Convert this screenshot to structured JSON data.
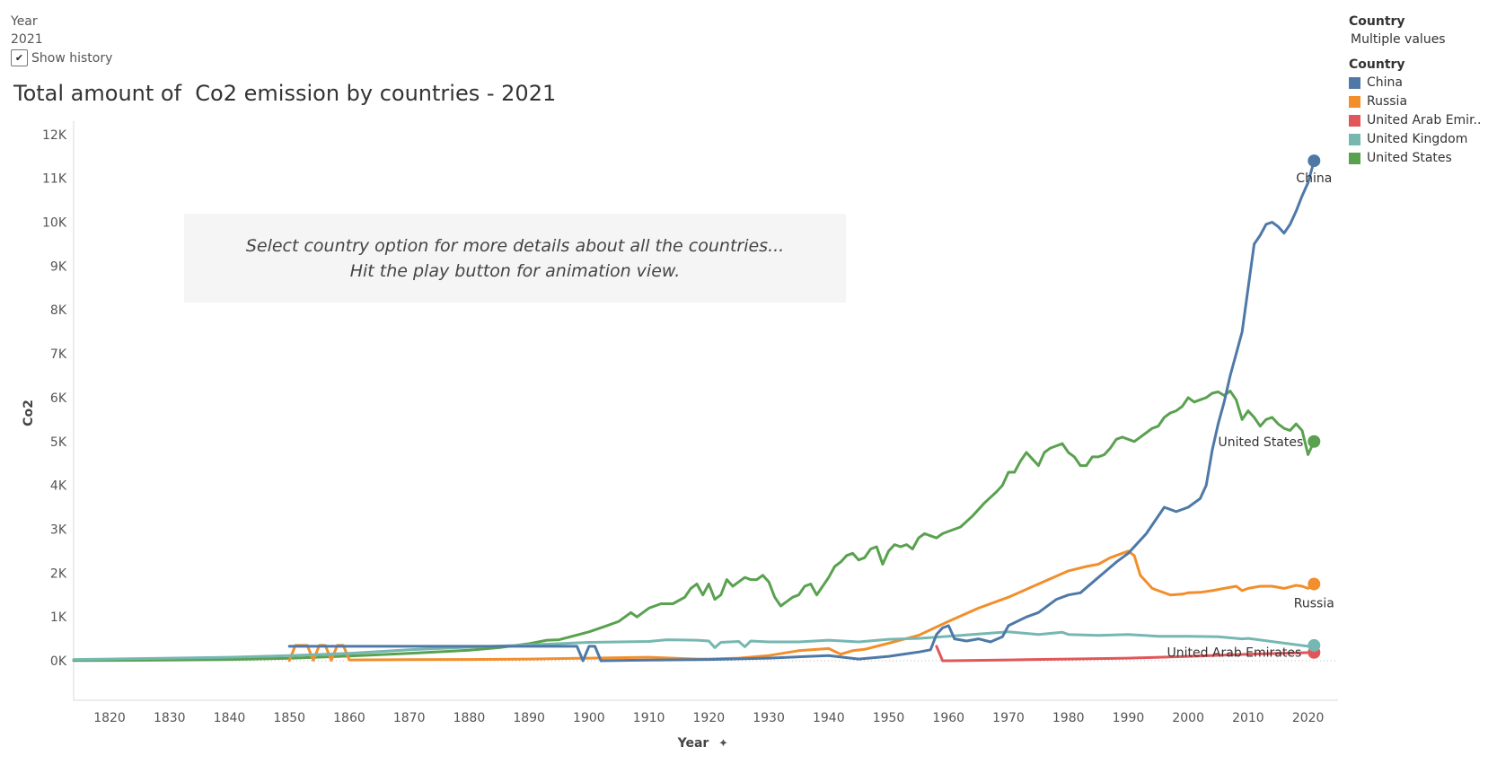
{
  "filters": {
    "year_label": "Year",
    "year_value": "2021",
    "show_history_label": "Show history",
    "show_history_checked": true,
    "country_header": "Country",
    "country_value": "Multiple values"
  },
  "legend": {
    "title": "Country",
    "items": [
      {
        "label": "China",
        "color": "#4e79a7"
      },
      {
        "label": "Russia",
        "color": "#f28e2b"
      },
      {
        "label": "United Arab Emir..",
        "color": "#e15759"
      },
      {
        "label": "United Kingdom",
        "color": "#76b7b2"
      },
      {
        "label": "United States",
        "color": "#59a14f"
      }
    ]
  },
  "note": {
    "line1": "Select country option for more details about all the countries...",
    "line2": "Hit the play button for animation view."
  },
  "chart_data": {
    "type": "line",
    "title": "Total amount of  Co2 emission by countries - 2021",
    "xlabel": "Year",
    "ylabel": "Co2",
    "xlim": [
      1814,
      2025
    ],
    "ylim": [
      -900,
      12200
    ],
    "x_ticks": [
      1820,
      1830,
      1840,
      1850,
      1860,
      1870,
      1880,
      1890,
      1900,
      1910,
      1920,
      1930,
      1940,
      1950,
      1960,
      1970,
      1980,
      1990,
      2000,
      2010,
      2020
    ],
    "x_tick_labels": [
      "1820",
      "1830",
      "1840",
      "1850",
      "1860",
      "1870",
      "1880",
      "1890",
      "1900",
      "1910",
      "1920",
      "1930",
      "1940",
      "1950",
      "1960",
      "1970",
      "1980",
      "1990",
      "2000",
      "2010",
      "2020"
    ],
    "y_ticks": [
      0,
      1000,
      2000,
      3000,
      4000,
      5000,
      6000,
      7000,
      8000,
      9000,
      10000,
      11000,
      12000
    ],
    "y_tick_labels": [
      "0K",
      "1K",
      "2K",
      "3K",
      "4K",
      "5K",
      "6K",
      "7K",
      "8K",
      "9K",
      "10K",
      "11K",
      "12K"
    ],
    "series": [
      {
        "name": "United States",
        "color": "#59a14f",
        "end_label": "United States",
        "points": [
          [
            1814,
            5
          ],
          [
            1820,
            8
          ],
          [
            1830,
            15
          ],
          [
            1840,
            30
          ],
          [
            1850,
            55
          ],
          [
            1860,
            110
          ],
          [
            1870,
            170
          ],
          [
            1880,
            240
          ],
          [
            1885,
            300
          ],
          [
            1890,
            390
          ],
          [
            1893,
            470
          ],
          [
            1895,
            480
          ],
          [
            1900,
            660
          ],
          [
            1903,
            800
          ],
          [
            1905,
            900
          ],
          [
            1907,
            1100
          ],
          [
            1908,
            1000
          ],
          [
            1910,
            1200
          ],
          [
            1912,
            1300
          ],
          [
            1914,
            1300
          ],
          [
            1916,
            1450
          ],
          [
            1917,
            1650
          ],
          [
            1918,
            1750
          ],
          [
            1919,
            1500
          ],
          [
            1920,
            1750
          ],
          [
            1921,
            1400
          ],
          [
            1922,
            1500
          ],
          [
            1923,
            1850
          ],
          [
            1924,
            1700
          ],
          [
            1925,
            1800
          ],
          [
            1926,
            1900
          ],
          [
            1927,
            1850
          ],
          [
            1928,
            1850
          ],
          [
            1929,
            1950
          ],
          [
            1930,
            1800
          ],
          [
            1931,
            1450
          ],
          [
            1932,
            1250
          ],
          [
            1933,
            1350
          ],
          [
            1934,
            1450
          ],
          [
            1935,
            1500
          ],
          [
            1936,
            1700
          ],
          [
            1937,
            1750
          ],
          [
            1938,
            1500
          ],
          [
            1939,
            1700
          ],
          [
            1940,
            1900
          ],
          [
            1941,
            2150
          ],
          [
            1942,
            2250
          ],
          [
            1943,
            2400
          ],
          [
            1944,
            2450
          ],
          [
            1945,
            2300
          ],
          [
            1946,
            2350
          ],
          [
            1947,
            2550
          ],
          [
            1948,
            2600
          ],
          [
            1949,
            2200
          ],
          [
            1950,
            2500
          ],
          [
            1951,
            2650
          ],
          [
            1952,
            2600
          ],
          [
            1953,
            2650
          ],
          [
            1954,
            2550
          ],
          [
            1955,
            2800
          ],
          [
            1956,
            2900
          ],
          [
            1957,
            2850
          ],
          [
            1958,
            2800
          ],
          [
            1959,
            2900
          ],
          [
            1960,
            2950
          ],
          [
            1962,
            3050
          ],
          [
            1964,
            3300
          ],
          [
            1966,
            3600
          ],
          [
            1968,
            3850
          ],
          [
            1969,
            4000
          ],
          [
            1970,
            4300
          ],
          [
            1971,
            4300
          ],
          [
            1972,
            4550
          ],
          [
            1973,
            4750
          ],
          [
            1974,
            4600
          ],
          [
            1975,
            4450
          ],
          [
            1976,
            4750
          ],
          [
            1977,
            4850
          ],
          [
            1978,
            4900
          ],
          [
            1979,
            4950
          ],
          [
            1980,
            4750
          ],
          [
            1981,
            4650
          ],
          [
            1982,
            4450
          ],
          [
            1983,
            4450
          ],
          [
            1984,
            4650
          ],
          [
            1985,
            4650
          ],
          [
            1986,
            4700
          ],
          [
            1987,
            4850
          ],
          [
            1988,
            5050
          ],
          [
            1989,
            5100
          ],
          [
            1990,
            5050
          ],
          [
            1991,
            5000
          ],
          [
            1992,
            5100
          ],
          [
            1993,
            5200
          ],
          [
            1994,
            5300
          ],
          [
            1995,
            5350
          ],
          [
            1996,
            5550
          ],
          [
            1997,
            5650
          ],
          [
            1998,
            5700
          ],
          [
            1999,
            5800
          ],
          [
            2000,
            6000
          ],
          [
            2001,
            5900
          ],
          [
            2002,
            5950
          ],
          [
            2003,
            6000
          ],
          [
            2004,
            6100
          ],
          [
            2005,
            6130
          ],
          [
            2006,
            6050
          ],
          [
            2007,
            6150
          ],
          [
            2008,
            5950
          ],
          [
            2009,
            5500
          ],
          [
            2010,
            5700
          ],
          [
            2011,
            5550
          ],
          [
            2012,
            5350
          ],
          [
            2013,
            5500
          ],
          [
            2014,
            5550
          ],
          [
            2015,
            5400
          ],
          [
            2016,
            5300
          ],
          [
            2017,
            5250
          ],
          [
            2018,
            5400
          ],
          [
            2019,
            5250
          ],
          [
            2020,
            4700
          ],
          [
            2021,
            5000
          ]
        ]
      },
      {
        "name": "Russia",
        "color": "#f28e2b",
        "end_label": "Russia",
        "points": [
          [
            1850,
            5
          ],
          [
            1851,
            350
          ],
          [
            1853,
            350
          ],
          [
            1854,
            10
          ],
          [
            1855,
            350
          ],
          [
            1856,
            350
          ],
          [
            1857,
            10
          ],
          [
            1858,
            350
          ],
          [
            1859,
            350
          ],
          [
            1860,
            20
          ],
          [
            1870,
            25
          ],
          [
            1880,
            30
          ],
          [
            1890,
            40
          ],
          [
            1900,
            60
          ],
          [
            1910,
            80
          ],
          [
            1918,
            40
          ],
          [
            1920,
            40
          ],
          [
            1925,
            60
          ],
          [
            1930,
            120
          ],
          [
            1935,
            230
          ],
          [
            1940,
            280
          ],
          [
            1942,
            150
          ],
          [
            1944,
            230
          ],
          [
            1946,
            260
          ],
          [
            1950,
            400
          ],
          [
            1955,
            580
          ],
          [
            1960,
            900
          ],
          [
            1965,
            1200
          ],
          [
            1970,
            1450
          ],
          [
            1975,
            1750
          ],
          [
            1980,
            2050
          ],
          [
            1983,
            2150
          ],
          [
            1985,
            2200
          ],
          [
            1987,
            2350
          ],
          [
            1989,
            2450
          ],
          [
            1990,
            2500
          ],
          [
            1991,
            2400
          ],
          [
            1992,
            1950
          ],
          [
            1993,
            1800
          ],
          [
            1994,
            1650
          ],
          [
            1995,
            1600
          ],
          [
            1997,
            1500
          ],
          [
            1999,
            1520
          ],
          [
            2000,
            1550
          ],
          [
            2002,
            1560
          ],
          [
            2004,
            1600
          ],
          [
            2006,
            1650
          ],
          [
            2008,
            1700
          ],
          [
            2009,
            1600
          ],
          [
            2010,
            1650
          ],
          [
            2012,
            1700
          ],
          [
            2014,
            1700
          ],
          [
            2016,
            1650
          ],
          [
            2018,
            1720
          ],
          [
            2019,
            1700
          ],
          [
            2020,
            1650
          ],
          [
            2021,
            1750
          ]
        ]
      },
      {
        "name": "United Arab Emirates",
        "color": "#e15759",
        "end_label": "United Arab Emirates",
        "points": [
          [
            1958,
            330
          ],
          [
            1959,
            0
          ],
          [
            1960,
            0
          ],
          [
            1970,
            20
          ],
          [
            1980,
            40
          ],
          [
            1990,
            60
          ],
          [
            2000,
            100
          ],
          [
            2010,
            150
          ],
          [
            2021,
            190
          ]
        ]
      },
      {
        "name": "United Kingdom",
        "color": "#76b7b2",
        "end_label": "",
        "points": [
          [
            1814,
            30
          ],
          [
            1820,
            40
          ],
          [
            1830,
            60
          ],
          [
            1840,
            80
          ],
          [
            1850,
            120
          ],
          [
            1860,
            170
          ],
          [
            1870,
            250
          ],
          [
            1880,
            310
          ],
          [
            1890,
            360
          ],
          [
            1900,
            420
          ],
          [
            1910,
            440
          ],
          [
            1913,
            480
          ],
          [
            1918,
            470
          ],
          [
            1920,
            450
          ],
          [
            1921,
            300
          ],
          [
            1922,
            420
          ],
          [
            1925,
            440
          ],
          [
            1926,
            320
          ],
          [
            1927,
            450
          ],
          [
            1930,
            430
          ],
          [
            1935,
            430
          ],
          [
            1940,
            470
          ],
          [
            1945,
            430
          ],
          [
            1950,
            490
          ],
          [
            1955,
            510
          ],
          [
            1960,
            560
          ],
          [
            1965,
            610
          ],
          [
            1970,
            660
          ],
          [
            1975,
            600
          ],
          [
            1979,
            650
          ],
          [
            1980,
            600
          ],
          [
            1985,
            580
          ],
          [
            1990,
            600
          ],
          [
            1995,
            560
          ],
          [
            2000,
            560
          ],
          [
            2005,
            550
          ],
          [
            2009,
            500
          ],
          [
            2010,
            510
          ],
          [
            2015,
            420
          ],
          [
            2020,
            330
          ],
          [
            2021,
            350
          ]
        ]
      },
      {
        "name": "China",
        "color": "#4e79a7",
        "end_label": "China",
        "points": [
          [
            1850,
            330
          ],
          [
            1898,
            330
          ],
          [
            1899,
            0
          ],
          [
            1900,
            330
          ],
          [
            1901,
            330
          ],
          [
            1902,
            0
          ],
          [
            1907,
            10
          ],
          [
            1920,
            30
          ],
          [
            1930,
            60
          ],
          [
            1940,
            120
          ],
          [
            1945,
            40
          ],
          [
            1950,
            100
          ],
          [
            1955,
            200
          ],
          [
            1957,
            250
          ],
          [
            1958,
            600
          ],
          [
            1959,
            750
          ],
          [
            1960,
            800
          ],
          [
            1961,
            500
          ],
          [
            1963,
            450
          ],
          [
            1965,
            500
          ],
          [
            1967,
            430
          ],
          [
            1969,
            550
          ],
          [
            1970,
            800
          ],
          [
            1973,
            1000
          ],
          [
            1975,
            1100
          ],
          [
            1978,
            1400
          ],
          [
            1980,
            1500
          ],
          [
            1982,
            1550
          ],
          [
            1985,
            1900
          ],
          [
            1988,
            2250
          ],
          [
            1990,
            2450
          ],
          [
            1993,
            2900
          ],
          [
            1996,
            3500
          ],
          [
            1998,
            3400
          ],
          [
            2000,
            3500
          ],
          [
            2002,
            3700
          ],
          [
            2003,
            4000
          ],
          [
            2004,
            4800
          ],
          [
            2005,
            5400
          ],
          [
            2006,
            5900
          ],
          [
            2007,
            6500
          ],
          [
            2008,
            7000
          ],
          [
            2009,
            7500
          ],
          [
            2010,
            8500
          ],
          [
            2011,
            9500
          ],
          [
            2012,
            9700
          ],
          [
            2013,
            9950
          ],
          [
            2014,
            10000
          ],
          [
            2015,
            9900
          ],
          [
            2016,
            9750
          ],
          [
            2017,
            9950
          ],
          [
            2018,
            10250
          ],
          [
            2019,
            10600
          ],
          [
            2020,
            10900
          ],
          [
            2021,
            11400
          ]
        ]
      }
    ]
  }
}
